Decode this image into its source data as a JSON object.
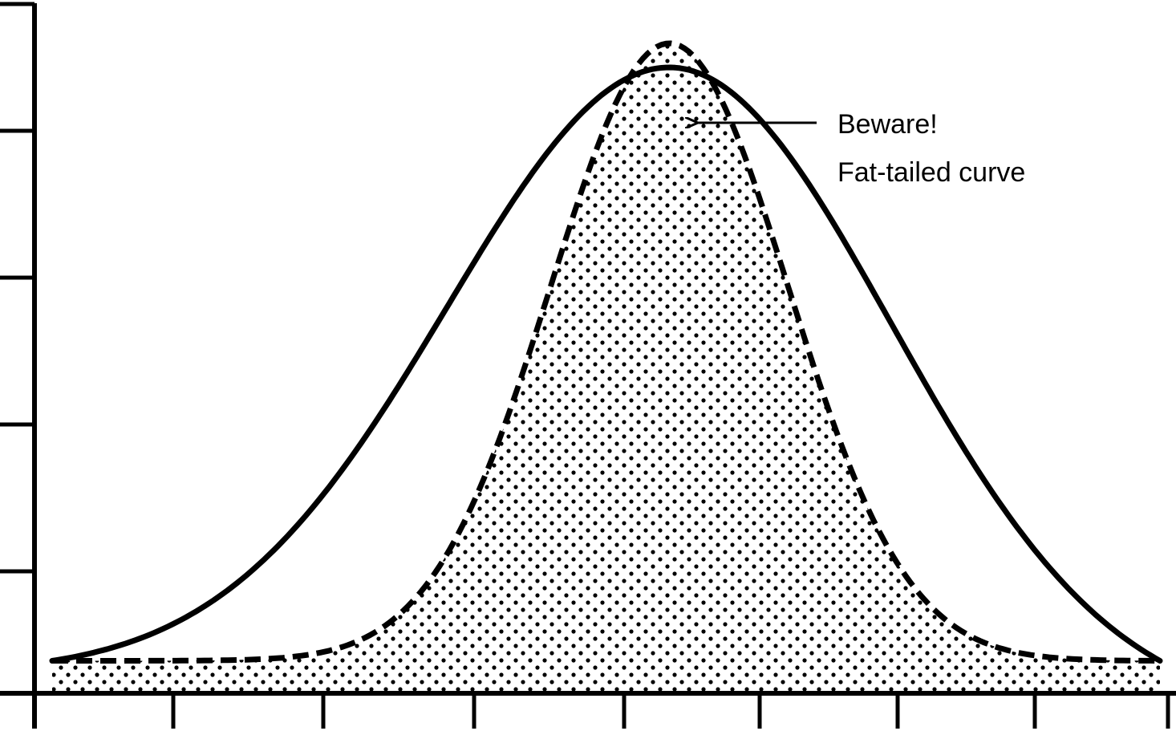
{
  "chart_data": {
    "type": "line",
    "title": "",
    "xlabel": "",
    "ylabel": "",
    "x_tick_count": 8,
    "y_tick_count": 5,
    "grid": false,
    "legend": null,
    "series": [
      {
        "style": "solid",
        "fill": "none",
        "peak_x": 3.9,
        "peak_y": 0.963,
        "scale": 1.4,
        "tail_y_at_edges": 0.05
      },
      {
        "style": "dashed",
        "fill": "dotted",
        "peak_x": 3.9,
        "peak_y": 1.0,
        "scale": 0.75,
        "tail_y_at_edges": 0.05
      }
    ],
    "annotations": [
      {
        "line1": "Beware!",
        "line2": "Fat-tailed curve",
        "arrow": true
      }
    ]
  },
  "colors": {
    "ink": "#000000",
    "background": "#ffffff"
  }
}
